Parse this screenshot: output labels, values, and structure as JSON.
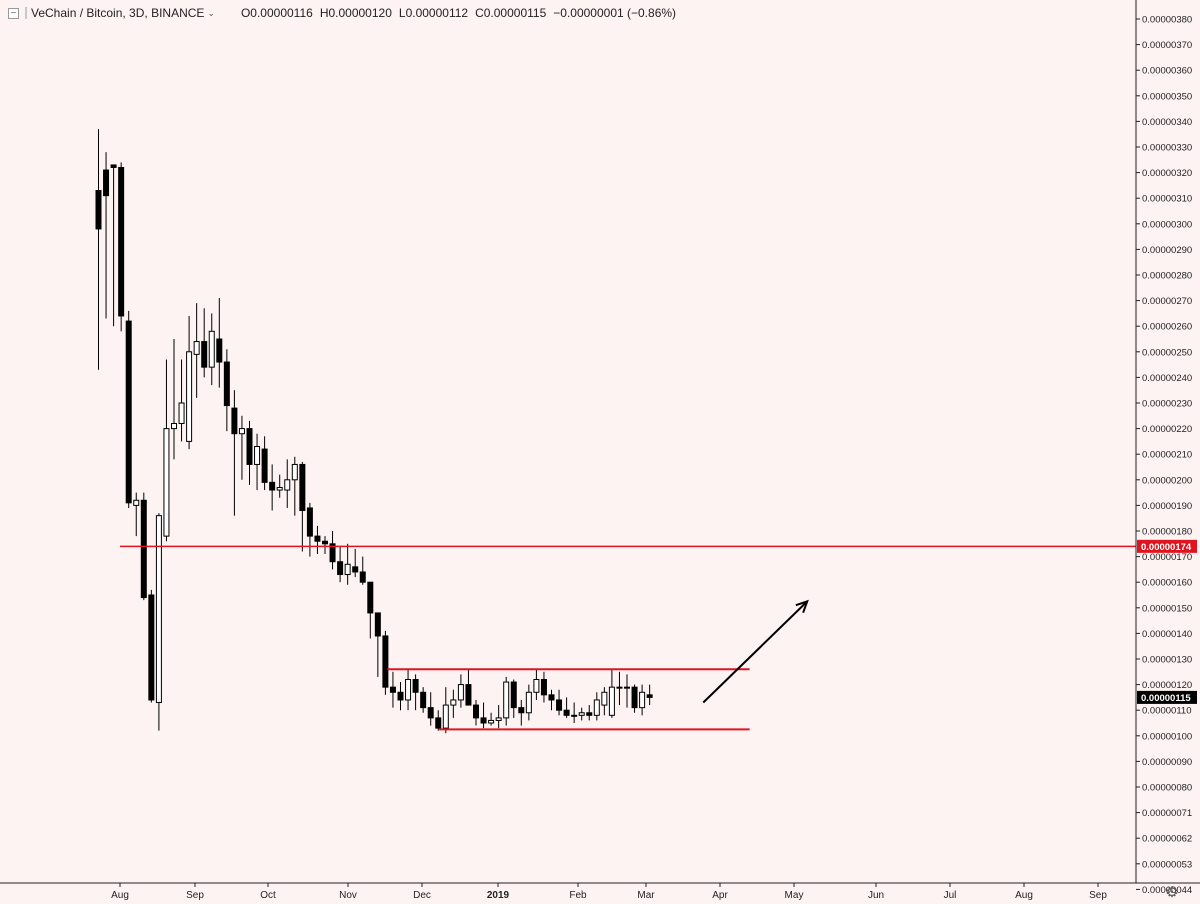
{
  "header": {
    "collapse_icon": "minus-square-icon",
    "symbol_title": "VeChain / Bitcoin, 3D, BINANCE",
    "chevron": "⌄",
    "open": "O0.00000116",
    "high": "H0.00000120",
    "low": "L0.00000112",
    "close": "C0.00000115",
    "change": "−0.00000001 (−0.86%)"
  },
  "footer": {
    "settings_icon": "gear-icon",
    "settings_glyph": "⚙"
  },
  "colors": {
    "background": "#fdf3f3",
    "candle": "#000000",
    "drawing": "#e0141e",
    "arrow": "#000000"
  },
  "chart_data": {
    "type": "candlestick",
    "y_axis": {
      "labels": [
        "0.00000380",
        "0.00000370",
        "0.00000360",
        "0.00000350",
        "0.00000340",
        "0.00000330",
        "0.00000320",
        "0.00000310",
        "0.00000300",
        "0.00000290",
        "0.00000280",
        "0.00000270",
        "0.00000260",
        "0.00000250",
        "0.00000240",
        "0.00000230",
        "0.00000220",
        "0.00000210",
        "0.00000200",
        "0.00000190",
        "0.00000180",
        "0.00000170",
        "0.00000160",
        "0.00000150",
        "0.00000140",
        "0.00000130",
        "0.00000120",
        "0.00000110",
        "0.00000100",
        "0.00000090",
        "0.00000080",
        "0.00000071",
        "0.00000062",
        "0.00000053",
        "0.00000044"
      ],
      "scale": "log",
      "range": [
        "0.00000044",
        "0.00000380"
      ]
    },
    "x_axis": {
      "labels": [
        "Aug",
        "Sep",
        "Oct",
        "Nov",
        "Dec",
        "2019",
        "Feb",
        "Mar",
        "Apr",
        "May",
        "Jun",
        "Jul",
        "Aug",
        "Sep"
      ],
      "bold": [
        "2019"
      ]
    },
    "price_tags": [
      {
        "value": "0.00000174",
        "style": "red"
      },
      {
        "value": "0.00000115",
        "style": "black"
      }
    ],
    "candles": [
      [
        313,
        337,
        243,
        298
      ],
      [
        321,
        328,
        263,
        311
      ],
      [
        323,
        322,
        260,
        322
      ],
      [
        322,
        324,
        258,
        264
      ],
      [
        262,
        266,
        189,
        191
      ],
      [
        190,
        195,
        178,
        192
      ],
      [
        192,
        195,
        153,
        154
      ],
      [
        155,
        157,
        113,
        114
      ],
      [
        113,
        187,
        102,
        186
      ],
      [
        178,
        247,
        176,
        220
      ],
      [
        220,
        255,
        208,
        222
      ],
      [
        222,
        247,
        215,
        230
      ],
      [
        215,
        264,
        212,
        250
      ],
      [
        249,
        269,
        232,
        254
      ],
      [
        254,
        267,
        240,
        244
      ],
      [
        244,
        265,
        237,
        258
      ],
      [
        255,
        271,
        236,
        246
      ],
      [
        246,
        251,
        219,
        229
      ],
      [
        228,
        235,
        186,
        218
      ],
      [
        218,
        225,
        200,
        220
      ],
      [
        220,
        223,
        198,
        206
      ],
      [
        206,
        218,
        196,
        213
      ],
      [
        212,
        217,
        196,
        199
      ],
      [
        199,
        206,
        188,
        196
      ],
      [
        196,
        202,
        193,
        197
      ],
      [
        196,
        208,
        189,
        200
      ],
      [
        200,
        209,
        186,
        206
      ],
      [
        206,
        207,
        172,
        188
      ],
      [
        189,
        191,
        170,
        178
      ],
      [
        178,
        182,
        171,
        176
      ],
      [
        176,
        178,
        171,
        175
      ],
      [
        175,
        180,
        165,
        168
      ],
      [
        168,
        174,
        160,
        163
      ],
      [
        163,
        175,
        159,
        167
      ],
      [
        166,
        173,
        162,
        164
      ],
      [
        164,
        170,
        159,
        160
      ],
      [
        160,
        160,
        138,
        148
      ],
      [
        148,
        148,
        123,
        139
      ],
      [
        139,
        141,
        116,
        119
      ],
      [
        119,
        125,
        111,
        117
      ],
      [
        117,
        121,
        110,
        114
      ],
      [
        114,
        126,
        110,
        122
      ],
      [
        122,
        124,
        110,
        117
      ],
      [
        117,
        119,
        109,
        111
      ],
      [
        111,
        117,
        104,
        107
      ],
      [
        107,
        110,
        102,
        103
      ],
      [
        103,
        119,
        101,
        112
      ],
      [
        112,
        118,
        107,
        114
      ],
      [
        114,
        124,
        111,
        120
      ],
      [
        120,
        126,
        113,
        112
      ],
      [
        112,
        114,
        104,
        107
      ],
      [
        107,
        113,
        103,
        105
      ],
      [
        105,
        109,
        104,
        106
      ],
      [
        106,
        112,
        103,
        107
      ],
      [
        107,
        123,
        104,
        121
      ],
      [
        121,
        122,
        107,
        111
      ],
      [
        111,
        114,
        104,
        109
      ],
      [
        109,
        120,
        106,
        117
      ],
      [
        117,
        126,
        114,
        122
      ],
      [
        122,
        125,
        113,
        116
      ],
      [
        116,
        118,
        110,
        114
      ],
      [
        114,
        118,
        108,
        110
      ],
      [
        110,
        115,
        107,
        108
      ],
      [
        108,
        113,
        105,
        108
      ],
      [
        108,
        111,
        106,
        109
      ],
      [
        109,
        112,
        106,
        108
      ],
      [
        108,
        117,
        106,
        114
      ],
      [
        112,
        119,
        108,
        117
      ],
      [
        108,
        126,
        107,
        119
      ],
      [
        119,
        125,
        112,
        119
      ],
      [
        119,
        124,
        111,
        119
      ],
      [
        119,
        120,
        109,
        111
      ],
      [
        111,
        120,
        108,
        117
      ],
      [
        116,
        120,
        112,
        115
      ]
    ],
    "lines": [
      {
        "name": "resistance-line",
        "color": "#e0141e",
        "from": {
          "date": "2018-08-01",
          "price": 1.74e-06
        },
        "to": "right-edge"
      },
      {
        "name": "range-top-line",
        "color": "#e0141e",
        "from": {
          "date": "2018-11-17",
          "price": 1.26e-06
        },
        "to": {
          "date": "2019-04-13",
          "price": 1.26e-06
        }
      },
      {
        "name": "range-bottom-line",
        "color": "#e0141e",
        "from": {
          "date": "2018-12-08",
          "price": 1.025e-06
        },
        "to": {
          "date": "2019-04-13",
          "price": 1.025e-06
        }
      }
    ],
    "arrow": {
      "name": "breakout-arrow",
      "color": "#000000",
      "from": {
        "date": "2019-03-25",
        "price": 1.13e-06
      },
      "to": {
        "date": "2019-05-06",
        "price": 1.525e-06
      }
    },
    "grid": false,
    "legend": "none"
  }
}
